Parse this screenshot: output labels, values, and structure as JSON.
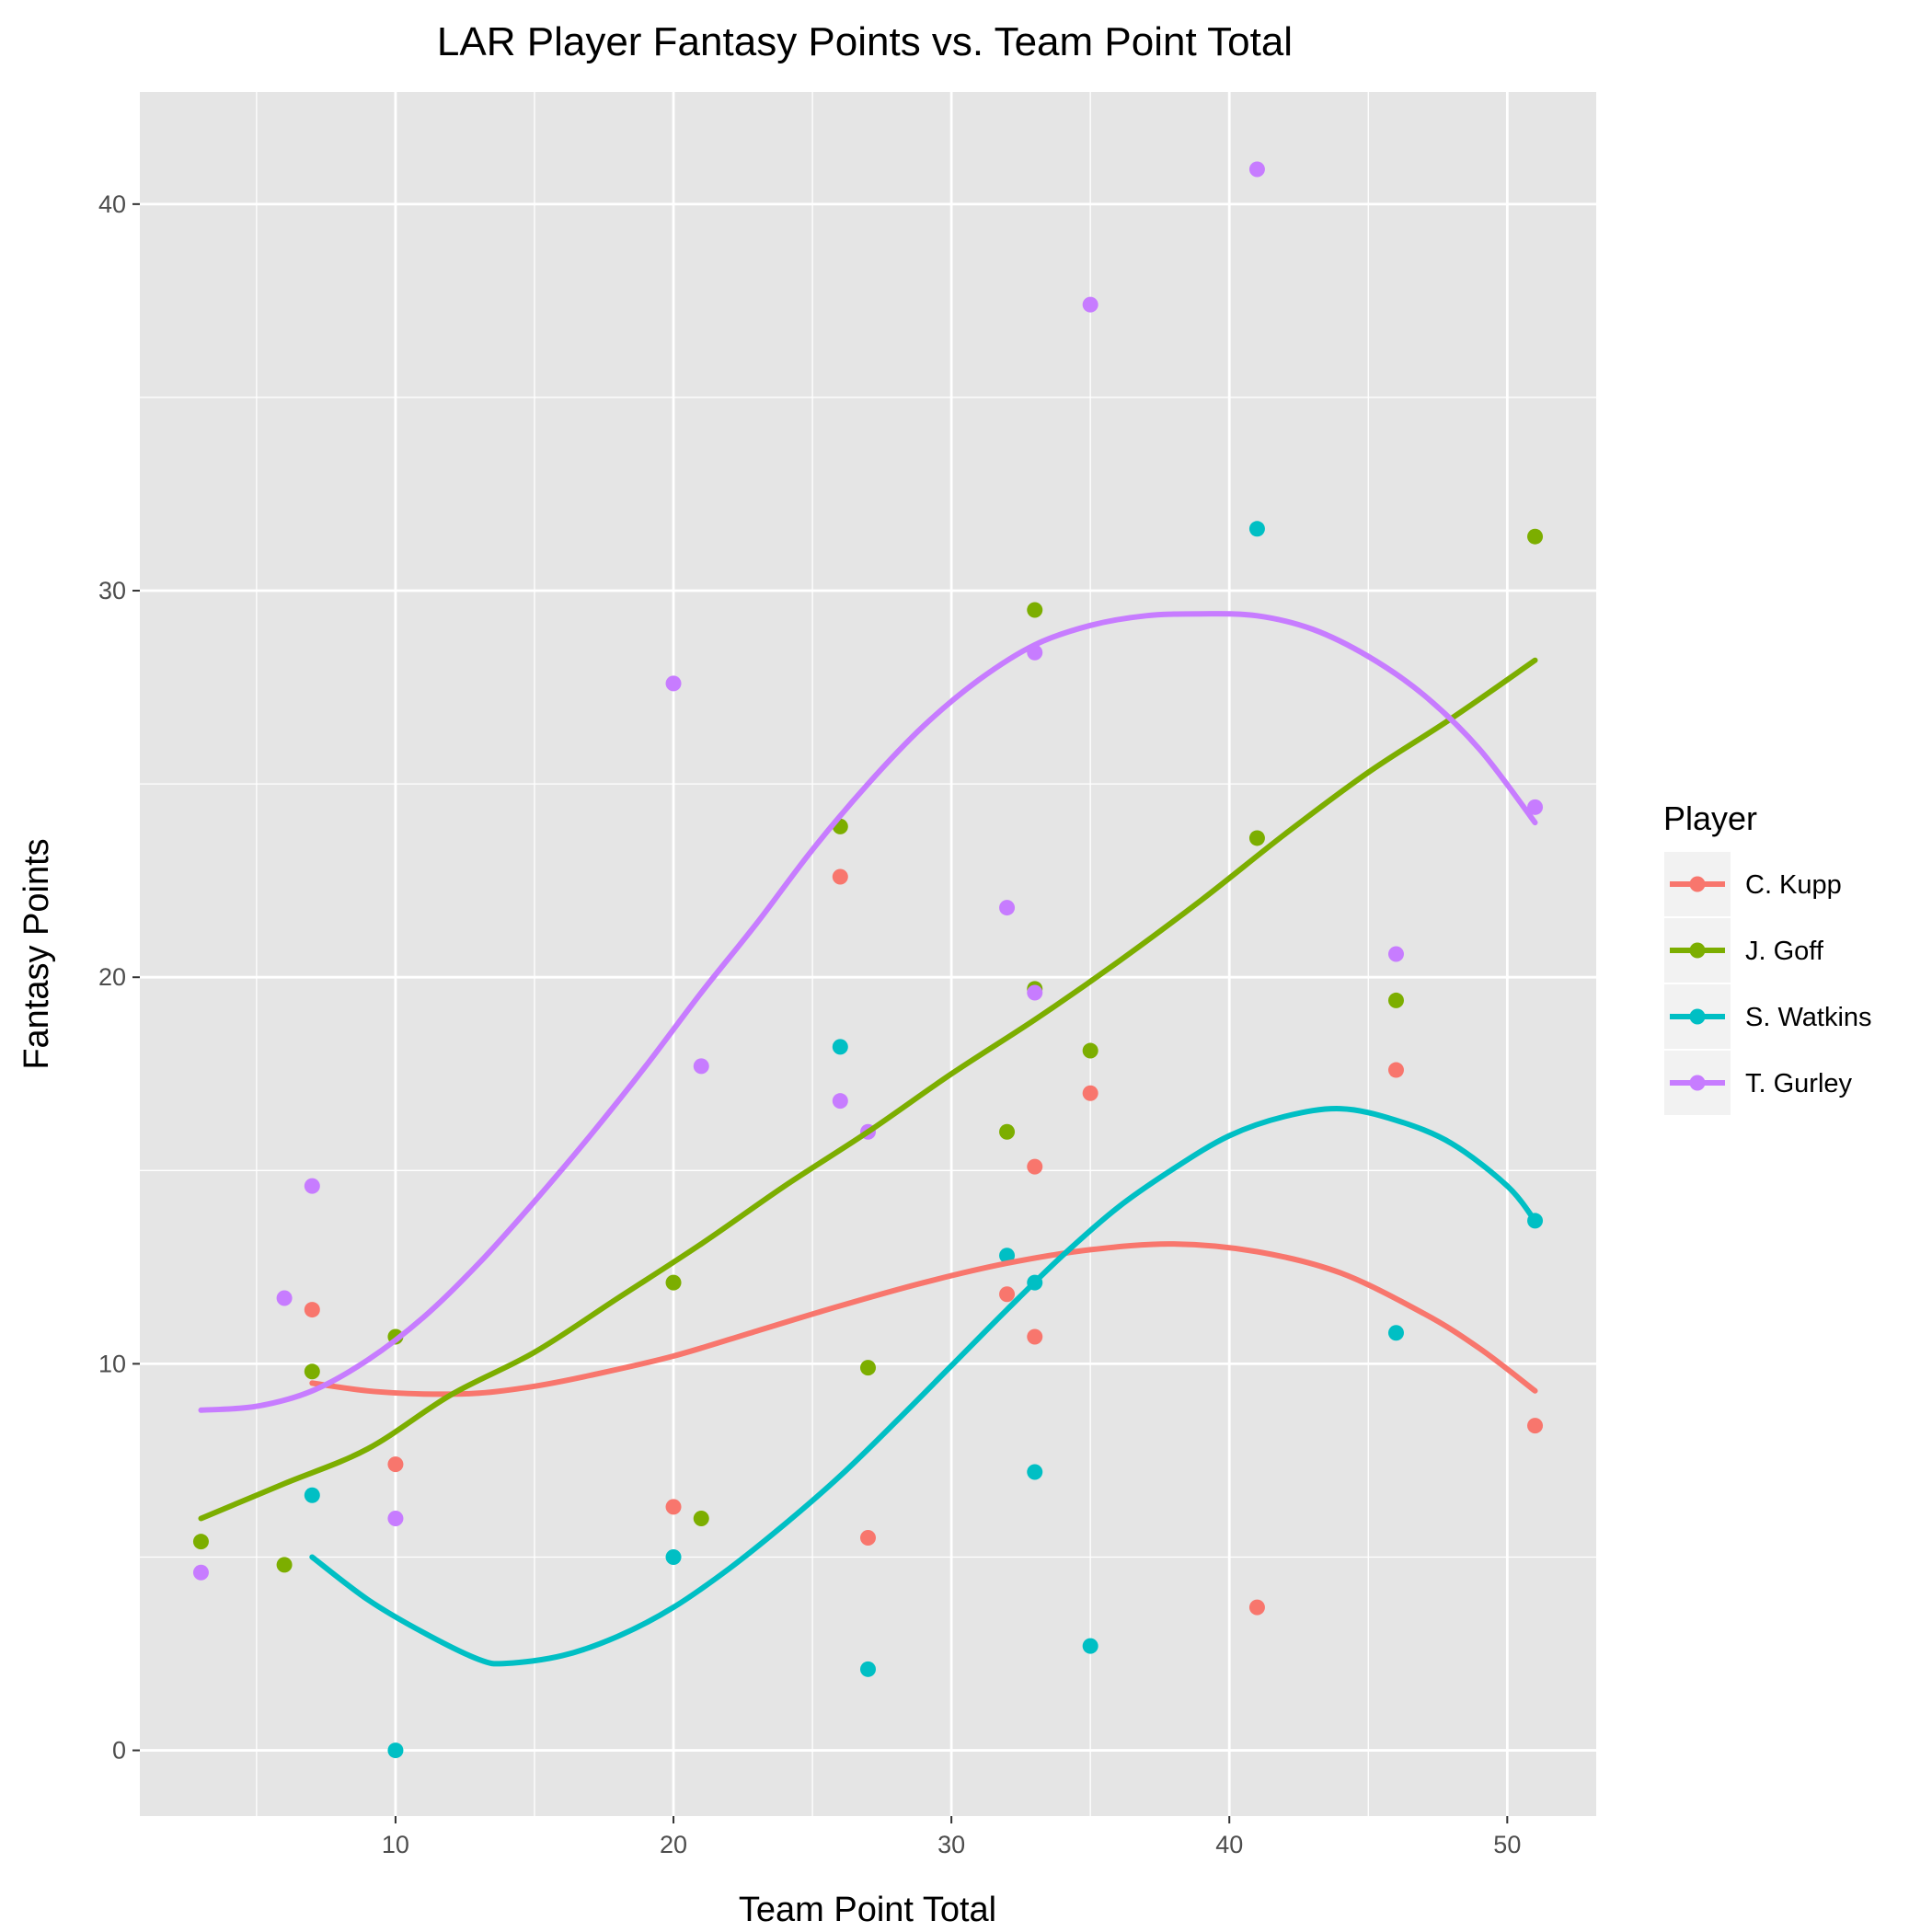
{
  "chart_data": {
    "type": "scatter",
    "title": "LAR Player Fantasy Points vs. Team Point Total",
    "xlabel": "Team Point Total",
    "ylabel": "Fantasy Points",
    "xlim": [
      0.8,
      53.2
    ],
    "ylim": [
      -1.7,
      42.9
    ],
    "x_major_ticks": [
      10,
      20,
      30,
      40,
      50
    ],
    "x_minor_ticks": [
      5,
      15,
      25,
      35,
      45
    ],
    "y_major_ticks": [
      0,
      10,
      20,
      30,
      40
    ],
    "y_minor_ticks": [
      5,
      15,
      25,
      35
    ],
    "grid": true,
    "legend": {
      "title": "Player",
      "placement": "right"
    },
    "panel_background": "#E5E5E5",
    "grid_color": "#FFFFFF",
    "series": [
      {
        "name": "C. Kupp",
        "color": "#F8766D",
        "points": [
          [
            7,
            11.4
          ],
          [
            10,
            7.4
          ],
          [
            20,
            6.3
          ],
          [
            26,
            22.6
          ],
          [
            27,
            5.5
          ],
          [
            32,
            11.8
          ],
          [
            33,
            15.1
          ],
          [
            33,
            10.7
          ],
          [
            35,
            17.0
          ],
          [
            41,
            3.7
          ],
          [
            46,
            17.6
          ],
          [
            51,
            8.4
          ]
        ],
        "smooth": [
          [
            7,
            9.5
          ],
          [
            9,
            9.3
          ],
          [
            11,
            9.22
          ],
          [
            13,
            9.24
          ],
          [
            15,
            9.42
          ],
          [
            17,
            9.7
          ],
          [
            20,
            10.2
          ],
          [
            23,
            10.85
          ],
          [
            26,
            11.5
          ],
          [
            29,
            12.1
          ],
          [
            32,
            12.6
          ],
          [
            35,
            12.95
          ],
          [
            38,
            13.1
          ],
          [
            41,
            12.9
          ],
          [
            44,
            12.35
          ],
          [
            47,
            11.3
          ],
          [
            49,
            10.4
          ],
          [
            51,
            9.3
          ]
        ]
      },
      {
        "name": "J. Goff",
        "color": "#7CAE00",
        "points": [
          [
            3,
            5.4
          ],
          [
            6,
            4.8
          ],
          [
            7,
            9.8
          ],
          [
            10,
            10.7
          ],
          [
            20,
            12.1
          ],
          [
            21,
            6.0
          ],
          [
            26,
            23.9
          ],
          [
            27,
            9.9
          ],
          [
            32,
            16.0
          ],
          [
            33,
            29.5
          ],
          [
            33,
            19.7
          ],
          [
            35,
            18.1
          ],
          [
            41,
            23.6
          ],
          [
            46,
            19.4
          ],
          [
            51,
            31.4
          ]
        ],
        "smooth": [
          [
            3,
            6.0
          ],
          [
            6,
            6.9
          ],
          [
            9,
            7.8
          ],
          [
            12,
            9.2
          ],
          [
            15,
            10.3
          ],
          [
            18,
            11.7
          ],
          [
            21,
            13.1
          ],
          [
            24,
            14.6
          ],
          [
            27,
            16.0
          ],
          [
            30,
            17.5
          ],
          [
            33,
            18.9
          ],
          [
            36,
            20.4
          ],
          [
            39,
            22.0
          ],
          [
            42,
            23.7
          ],
          [
            45,
            25.3
          ],
          [
            48,
            26.7
          ],
          [
            51,
            28.2
          ]
        ]
      },
      {
        "name": "S. Watkins",
        "color": "#00BFC4",
        "points": [
          [
            7,
            6.6
          ],
          [
            10,
            0.0
          ],
          [
            20,
            5.0
          ],
          [
            26,
            18.2
          ],
          [
            27,
            2.1
          ],
          [
            32,
            12.8
          ],
          [
            33,
            12.1
          ],
          [
            33,
            7.2
          ],
          [
            35,
            2.7
          ],
          [
            41,
            31.6
          ],
          [
            46,
            10.8
          ],
          [
            51,
            13.7
          ]
        ],
        "smooth": [
          [
            7,
            5.0
          ],
          [
            9,
            3.9
          ],
          [
            11,
            3.05
          ],
          [
            13,
            2.35
          ],
          [
            14,
            2.25
          ],
          [
            16,
            2.45
          ],
          [
            18,
            2.95
          ],
          [
            20,
            3.7
          ],
          [
            22,
            4.7
          ],
          [
            24,
            5.85
          ],
          [
            26,
            7.1
          ],
          [
            28,
            8.5
          ],
          [
            30,
            9.95
          ],
          [
            32,
            11.4
          ],
          [
            34,
            12.8
          ],
          [
            36,
            14.05
          ],
          [
            38,
            15.05
          ],
          [
            40,
            15.9
          ],
          [
            42,
            16.4
          ],
          [
            44,
            16.6
          ],
          [
            46,
            16.3
          ],
          [
            48,
            15.7
          ],
          [
            50,
            14.6
          ],
          [
            51,
            13.7
          ]
        ]
      },
      {
        "name": "T. Gurley",
        "color": "#C77CFF",
        "points": [
          [
            3,
            4.6
          ],
          [
            6,
            11.7
          ],
          [
            7,
            14.6
          ],
          [
            10,
            6.0
          ],
          [
            20,
            27.6
          ],
          [
            21,
            17.7
          ],
          [
            26,
            16.8
          ],
          [
            27,
            16.0
          ],
          [
            32,
            21.8
          ],
          [
            33,
            28.4
          ],
          [
            33,
            19.6
          ],
          [
            35,
            37.4
          ],
          [
            41,
            40.9
          ],
          [
            46,
            20.6
          ],
          [
            51,
            24.4
          ]
        ],
        "smooth": [
          [
            3,
            8.8
          ],
          [
            5,
            8.9
          ],
          [
            7,
            9.3
          ],
          [
            9,
            10.1
          ],
          [
            11,
            11.2
          ],
          [
            13,
            12.6
          ],
          [
            15,
            14.2
          ],
          [
            17,
            15.9
          ],
          [
            19,
            17.7
          ],
          [
            21,
            19.6
          ],
          [
            23,
            21.4
          ],
          [
            25,
            23.3
          ],
          [
            27,
            25.0
          ],
          [
            29,
            26.5
          ],
          [
            31,
            27.7
          ],
          [
            33,
            28.6
          ],
          [
            35,
            29.1
          ],
          [
            37,
            29.35
          ],
          [
            39,
            29.4
          ],
          [
            41,
            29.35
          ],
          [
            43,
            29.0
          ],
          [
            45,
            28.3
          ],
          [
            47,
            27.3
          ],
          [
            49,
            25.9
          ],
          [
            51,
            24.0
          ]
        ]
      }
    ]
  }
}
